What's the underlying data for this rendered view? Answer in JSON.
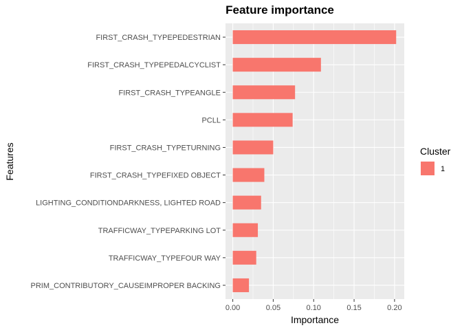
{
  "chart_data": {
    "type": "bar",
    "orientation": "horizontal",
    "title": "Feature importance",
    "xlabel": "Importance",
    "ylabel": "Features",
    "xlim": [
      -0.009,
      0.212
    ],
    "x_ticks": [
      0.0,
      0.05,
      0.1,
      0.15,
      0.2
    ],
    "x_tick_labels": [
      "0.00",
      "0.05",
      "0.10",
      "0.15",
      "0.20"
    ],
    "grid": true,
    "legend": {
      "title": "Cluster",
      "position": "right",
      "entries": [
        {
          "label": "1",
          "color": "#F8766D"
        }
      ]
    },
    "categories": [
      "FIRST_CRASH_TYPEPEDESTRIAN",
      "FIRST_CRASH_TYPEPEDALCYCLIST",
      "FIRST_CRASH_TYPEANGLE",
      "PCLL",
      "FIRST_CRASH_TYPETURNING",
      "FIRST_CRASH_TYPEFIXED OBJECT",
      "LIGHTING_CONDITIONDARKNESS, LIGHTED ROAD",
      "TRAFFICWAY_TYPEPARKING LOT",
      "TRAFFICWAY_TYPEFOUR WAY",
      "PRIM_CONTRIBUTORY_CAUSEIMPROPER BACKING"
    ],
    "values": [
      0.202,
      0.109,
      0.077,
      0.074,
      0.05,
      0.039,
      0.035,
      0.031,
      0.029,
      0.02
    ],
    "colors": {
      "bar": "#F8766D",
      "panel": "#EBEBEB",
      "grid": "#FFFFFF"
    }
  }
}
